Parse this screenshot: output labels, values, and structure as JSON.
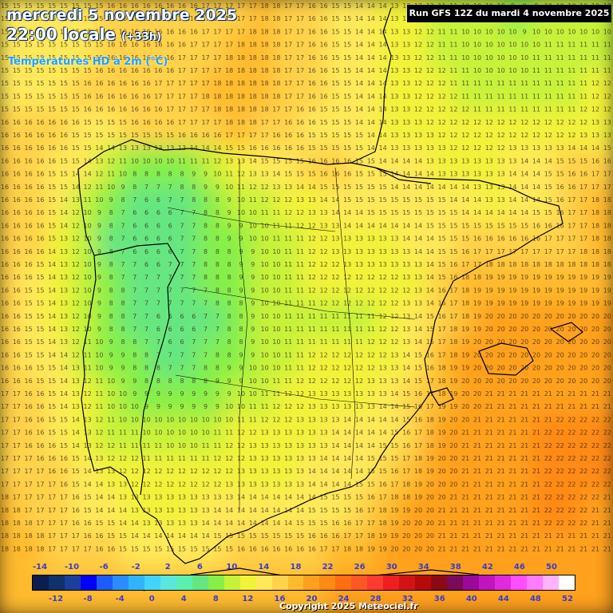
{
  "header": {
    "date_line": "mercredi 5 novembre 2025",
    "time_main": "22:00 locale",
    "time_offset": "(+33h)",
    "variable": "Températures HD à 2m (°C)",
    "run": "Run GFS 12Z du mardi 4 novembre 2025"
  },
  "footer": {
    "copyright": "Copyright 2025 Meteociel.fr"
  },
  "legend": {
    "values": [
      -14,
      -12,
      -10,
      -8,
      -6,
      -4,
      -2,
      0,
      2,
      4,
      6,
      8,
      10,
      12,
      14,
      16,
      18,
      20,
      22,
      24,
      26,
      28,
      30,
      32,
      34,
      36,
      38,
      40,
      42,
      44,
      46,
      48,
      50,
      52
    ],
    "top_labels": [
      "-14",
      "-10",
      "-6",
      "-2",
      "2",
      "6",
      "10",
      "14",
      "18",
      "22",
      "26",
      "30",
      "34",
      "38",
      "42",
      "46",
      "50"
    ],
    "bottom_labels": [
      "-12",
      "-8",
      "-4",
      "0",
      "4",
      "8",
      "12",
      "16",
      "20",
      "24",
      "28",
      "32",
      "36",
      "40",
      "44",
      "48",
      "52"
    ],
    "colors": [
      "#0a1e50",
      "#10306e",
      "#1a3f9e",
      "#0000ff",
      "#1e5bff",
      "#2b8cff",
      "#30b4ff",
      "#43d3ff",
      "#5ce6e0",
      "#5cf0b0",
      "#66e680",
      "#86ef4a",
      "#c6f23a",
      "#f2f23a",
      "#ffe95a",
      "#ffd24a",
      "#ffbb2e",
      "#ffa11c",
      "#ff8a14",
      "#ff6f10",
      "#ff5626",
      "#ff3a2e",
      "#f01e1e",
      "#d21414",
      "#b40a0a",
      "#8c0a14",
      "#7a0a5a",
      "#9a0a9a",
      "#c014c0",
      "#e02ae0",
      "#ff4dff",
      "#ff7bff",
      "#ffb3ff",
      "#ffffff"
    ]
  },
  "map": {
    "region": "Péninsule Ibérique",
    "value_grid": {
      "rows": [
        [
          15,
          15,
          15,
          15,
          16,
          16,
          16,
          16,
          17,
          17,
          18,
          17,
          16,
          15,
          14,
          13,
          12,
          11,
          10,
          10,
          9,
          10,
          10,
          10
        ],
        [
          15,
          15,
          15,
          15,
          16,
          16,
          16,
          17,
          17,
          18,
          18,
          17,
          16,
          15,
          14,
          13,
          12,
          11,
          10,
          10,
          10,
          11,
          11,
          11
        ],
        [
          15,
          15,
          15,
          16,
          16,
          16,
          17,
          17,
          18,
          18,
          18,
          17,
          16,
          15,
          14,
          13,
          12,
          12,
          11,
          11,
          11,
          11,
          11,
          12
        ],
        [
          16,
          16,
          16,
          15,
          15,
          16,
          16,
          17,
          17,
          18,
          17,
          16,
          15,
          15,
          14,
          13,
          13,
          12,
          12,
          12,
          12,
          12,
          12,
          13
        ],
        [
          16,
          16,
          15,
          14,
          11,
          8,
          8,
          9,
          10,
          12,
          14,
          15,
          16,
          16,
          15,
          14,
          14,
          13,
          13,
          13,
          14,
          15,
          16,
          17
        ],
        [
          16,
          16,
          14,
          10,
          8,
          6,
          6,
          7,
          8,
          10,
          11,
          12,
          13,
          14,
          15,
          15,
          15,
          15,
          14,
          13,
          14,
          15,
          17,
          18
        ],
        [
          16,
          16,
          13,
          10,
          7,
          6,
          6,
          7,
          8,
          9,
          10,
          11,
          12,
          13,
          13,
          13,
          14,
          15,
          16,
          17,
          17,
          17,
          17,
          18
        ],
        [
          16,
          15,
          13,
          10,
          8,
          7,
          7,
          7,
          8,
          9,
          10,
          11,
          12,
          12,
          12,
          12,
          13,
          16,
          19,
          19,
          19,
          19,
          19,
          19
        ],
        [
          16,
          15,
          13,
          10,
          8,
          7,
          6,
          6,
          7,
          8,
          10,
          11,
          11,
          11,
          11,
          12,
          14,
          17,
          19,
          20,
          20,
          20,
          20,
          20
        ],
        [
          16,
          15,
          14,
          11,
          9,
          8,
          7,
          7,
          8,
          9,
          10,
          11,
          12,
          12,
          12,
          13,
          15,
          18,
          20,
          20,
          20,
          20,
          20,
          20
        ],
        [
          17,
          16,
          14,
          12,
          10,
          9,
          9,
          9,
          9,
          10,
          11,
          12,
          13,
          13,
          13,
          14,
          16,
          19,
          20,
          21,
          21,
          21,
          21,
          21
        ],
        [
          17,
          16,
          15,
          13,
          11,
          11,
          10,
          10,
          11,
          12,
          13,
          13,
          13,
          14,
          14,
          15,
          17,
          20,
          21,
          21,
          21,
          22,
          22,
          22
        ],
        [
          17,
          17,
          16,
          14,
          13,
          12,
          12,
          12,
          12,
          13,
          13,
          13,
          14,
          14,
          15,
          16,
          19,
          20,
          21,
          21,
          21,
          22,
          22,
          22
        ],
        [
          18,
          17,
          17,
          15,
          14,
          13,
          13,
          13,
          14,
          14,
          14,
          14,
          15,
          15,
          17,
          19,
          20,
          21,
          21,
          21,
          21,
          22,
          22,
          21
        ],
        [
          18,
          18,
          17,
          17,
          16,
          15,
          15,
          15,
          15,
          16,
          16,
          16,
          17,
          18,
          19,
          20,
          20,
          21,
          21,
          21,
          21,
          21,
          21,
          21
        ],
        [
          19,
          19,
          18,
          18,
          18,
          18,
          18,
          18,
          18,
          18,
          19,
          19,
          19,
          20,
          20,
          20,
          20,
          21,
          21,
          21,
          21,
          21,
          20,
          20
        ]
      ]
    }
  }
}
